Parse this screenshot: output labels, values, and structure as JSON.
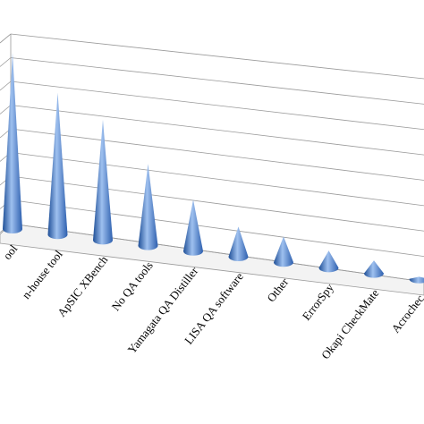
{
  "chart_data": {
    "type": "bar",
    "bar_shape": "cone",
    "style": "3d",
    "categories": [
      "ool",
      "n-house tool",
      "ApSIC XBench",
      "No QA tools",
      "Yamagata QA Distiller",
      "LISA QA software",
      "Other",
      "ErrorSpy",
      "Okapi CheckMate",
      "Acrochec"
    ],
    "values": [
      82,
      66,
      56,
      38,
      24,
      14,
      12,
      8,
      6,
      1
    ],
    "ylim": [
      0,
      90
    ],
    "grid": true,
    "title": "",
    "xlabel": "",
    "ylabel": "",
    "colors": {
      "cone": "#4a7cc9",
      "cone_dark": "#1f4f97",
      "cone_light": "#9ec0ef",
      "grid": "#9a9a9a"
    }
  }
}
